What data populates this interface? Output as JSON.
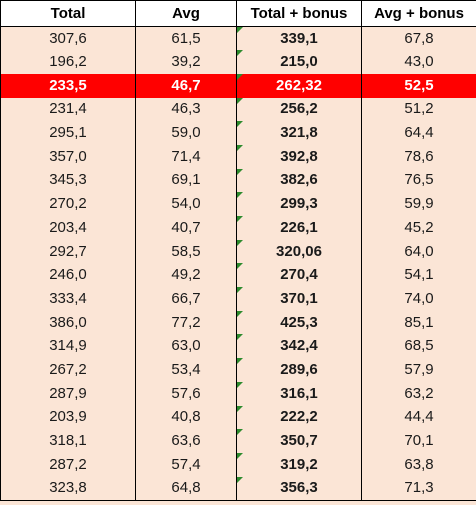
{
  "headers": [
    "Total",
    "Avg",
    "Total + bonus",
    "Avg + bonus"
  ],
  "rows": [
    {
      "total": "307,6",
      "avg": "61,5",
      "total_bonus": "339,1",
      "avg_bonus": "67,8",
      "highlight": false
    },
    {
      "total": "196,2",
      "avg": "39,2",
      "total_bonus": "215,0",
      "avg_bonus": "43,0",
      "highlight": false
    },
    {
      "total": "233,5",
      "avg": "46,7",
      "total_bonus": "262,32",
      "avg_bonus": "52,5",
      "highlight": true
    },
    {
      "total": "231,4",
      "avg": "46,3",
      "total_bonus": "256,2",
      "avg_bonus": "51,2",
      "highlight": false
    },
    {
      "total": "295,1",
      "avg": "59,0",
      "total_bonus": "321,8",
      "avg_bonus": "64,4",
      "highlight": false
    },
    {
      "total": "357,0",
      "avg": "71,4",
      "total_bonus": "392,8",
      "avg_bonus": "78,6",
      "highlight": false
    },
    {
      "total": "345,3",
      "avg": "69,1",
      "total_bonus": "382,6",
      "avg_bonus": "76,5",
      "highlight": false
    },
    {
      "total": "270,2",
      "avg": "54,0",
      "total_bonus": "299,3",
      "avg_bonus": "59,9",
      "highlight": false
    },
    {
      "total": "203,4",
      "avg": "40,7",
      "total_bonus": "226,1",
      "avg_bonus": "45,2",
      "highlight": false
    },
    {
      "total": "292,7",
      "avg": "58,5",
      "total_bonus": "320,06",
      "avg_bonus": "64,0",
      "highlight": false
    },
    {
      "total": "246,0",
      "avg": "49,2",
      "total_bonus": "270,4",
      "avg_bonus": "54,1",
      "highlight": false
    },
    {
      "total": "333,4",
      "avg": "66,7",
      "total_bonus": "370,1",
      "avg_bonus": "74,0",
      "highlight": false
    },
    {
      "total": "386,0",
      "avg": "77,2",
      "total_bonus": "425,3",
      "avg_bonus": "85,1",
      "highlight": false
    },
    {
      "total": "314,9",
      "avg": "63,0",
      "total_bonus": "342,4",
      "avg_bonus": "68,5",
      "highlight": false
    },
    {
      "total": "267,2",
      "avg": "53,4",
      "total_bonus": "289,6",
      "avg_bonus": "57,9",
      "highlight": false
    },
    {
      "total": "287,9",
      "avg": "57,6",
      "total_bonus": "316,1",
      "avg_bonus": "63,2",
      "highlight": false
    },
    {
      "total": "203,9",
      "avg": "40,8",
      "total_bonus": "222,2",
      "avg_bonus": "44,4",
      "highlight": false
    },
    {
      "total": "318,1",
      "avg": "63,6",
      "total_bonus": "350,7",
      "avg_bonus": "70,1",
      "highlight": false
    },
    {
      "total": "287,2",
      "avg": "57,4",
      "total_bonus": "319,2",
      "avg_bonus": "63,8",
      "highlight": false
    },
    {
      "total": "323,8",
      "avg": "64,8",
      "total_bonus": "356,3",
      "avg_bonus": "71,3",
      "highlight": false
    }
  ],
  "colors": {
    "row_background": "#fbe5d6",
    "highlight_background": "#ff0000",
    "highlight_text": "#ffffff",
    "error_indicator": "#2e8b2e"
  },
  "icons": {
    "cell_indicator": "green-triangle-error-indicator-icon"
  }
}
